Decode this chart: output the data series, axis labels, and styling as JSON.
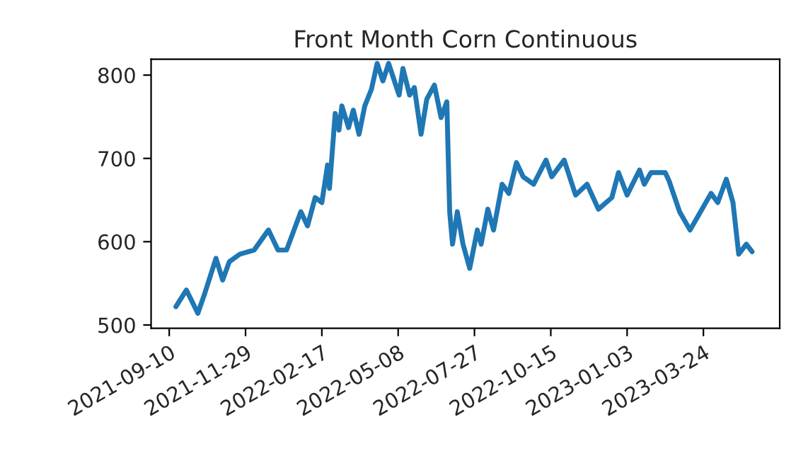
{
  "chart_data": {
    "type": "line",
    "title": "Front Month Corn Continuous",
    "x": [
      "2021-09-17",
      "2021-09-28",
      "2021-10-10",
      "2021-10-17",
      "2021-10-29",
      "2021-11-05",
      "2021-11-12",
      "2021-11-23",
      "2021-12-08",
      "2021-12-23",
      "2022-01-02",
      "2022-01-11",
      "2022-01-26",
      "2022-02-02",
      "2022-02-10",
      "2022-02-17",
      "2022-02-23",
      "2022-02-25",
      "2022-03-03",
      "2022-03-07",
      "2022-03-10",
      "2022-03-17",
      "2022-03-22",
      "2022-03-28",
      "2022-04-03",
      "2022-04-10",
      "2022-04-16",
      "2022-04-22",
      "2022-04-28",
      "2022-05-09",
      "2022-05-13",
      "2022-05-20",
      "2022-05-25",
      "2022-06-01",
      "2022-06-07",
      "2022-06-15",
      "2022-06-22",
      "2022-06-28",
      "2022-07-01",
      "2022-07-04",
      "2022-07-09",
      "2022-07-15",
      "2022-07-22",
      "2022-07-30",
      "2022-08-03",
      "2022-08-10",
      "2022-08-16",
      "2022-08-25",
      "2022-09-01",
      "2022-09-09",
      "2022-09-16",
      "2022-09-27",
      "2022-10-10",
      "2022-10-16",
      "2022-10-29",
      "2022-11-10",
      "2022-11-22",
      "2022-12-04",
      "2022-12-18",
      "2022-12-25",
      "2023-01-03",
      "2023-01-16",
      "2023-01-21",
      "2023-01-28",
      "2023-02-12",
      "2023-02-16",
      "2023-02-27",
      "2023-03-10",
      "2023-03-19",
      "2023-04-01",
      "2023-04-08",
      "2023-04-17",
      "2023-04-24",
      "2023-04-30",
      "2023-05-08",
      "2023-05-14"
    ],
    "series": [
      {
        "color": "#1f77b4",
        "values": [
          522,
          542,
          514,
          537,
          580,
          554,
          576,
          585,
          590,
          614,
          590,
          590,
          636,
          619,
          653,
          647,
          692,
          664,
          754,
          734,
          763,
          737,
          758,
          729,
          763,
          783,
          814,
          793,
          814,
          776,
          808,
          776,
          785,
          729,
          771,
          788,
          749,
          768,
          636,
          597,
          636,
          597,
          568,
          614,
          597,
          639,
          614,
          669,
          658,
          695,
          678,
          669,
          698,
          678,
          698,
          656,
          669,
          639,
          653,
          683,
          656,
          686,
          669,
          683,
          683,
          673,
          636,
          614,
          632,
          658,
          647,
          675,
          647,
          585,
          597,
          588
        ]
      }
    ],
    "xlim": [
      "2021-08-22",
      "2023-06-12"
    ],
    "xticks": [
      "2021-09-10",
      "2021-11-29",
      "2022-02-17",
      "2022-05-08",
      "2022-07-27",
      "2022-10-15",
      "2023-01-03",
      "2023-03-24"
    ],
    "ylim": [
      496,
      819
    ],
    "yticks": [
      500,
      600,
      700,
      800
    ],
    "grid": false
  }
}
